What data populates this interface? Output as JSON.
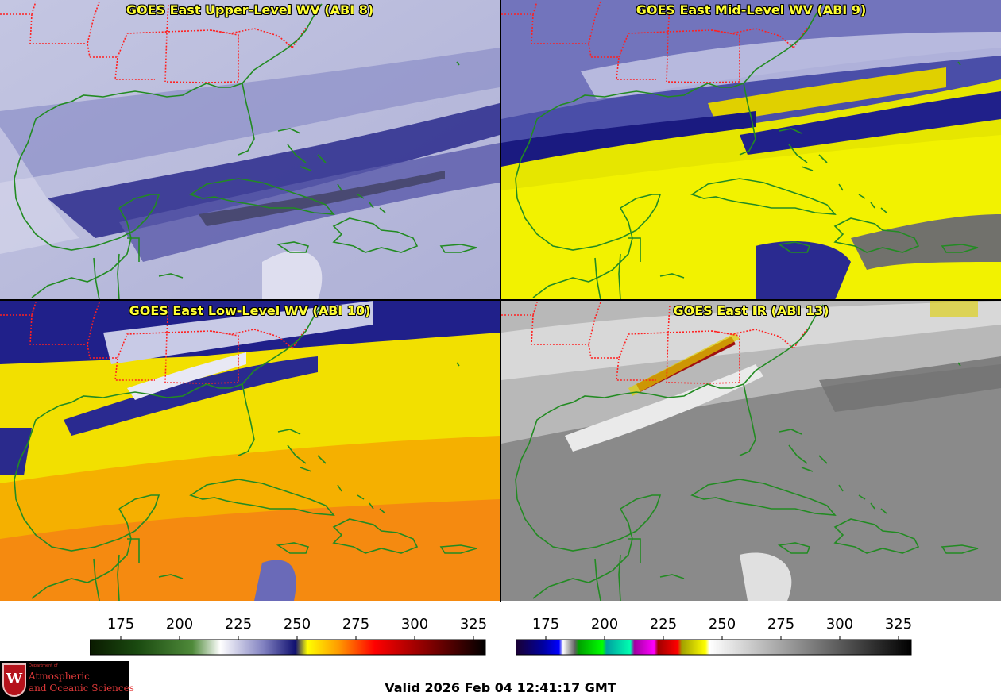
{
  "panels": [
    {
      "id": "upper",
      "title": "GOES East Upper-Level WV (ABI 8)"
    },
    {
      "id": "mid",
      "title": "GOES East Mid-Level WV (ABI 9)"
    },
    {
      "id": "low",
      "title": "GOES East Low-Level WV (ABI 10)"
    },
    {
      "id": "ir",
      "title": "GOES East IR (ABI 13)"
    }
  ],
  "colorbars": {
    "wv": {
      "ticks": [
        "175",
        "200",
        "225",
        "250",
        "275",
        "300",
        "325"
      ]
    },
    "ir": {
      "ticks": [
        "175",
        "200",
        "225",
        "250",
        "275",
        "300",
        "325"
      ]
    }
  },
  "footer": {
    "valid_text": "Valid 2026 Feb 04 12:41:17 GMT"
  },
  "logo": {
    "dept": "Department of",
    "line1": "Atmospheric",
    "line2": "and Oceanic Sciences",
    "crest": "W"
  },
  "colors": {
    "coastline": "#228b22",
    "state_borders": "#ff2020",
    "title": "#ffff33"
  }
}
